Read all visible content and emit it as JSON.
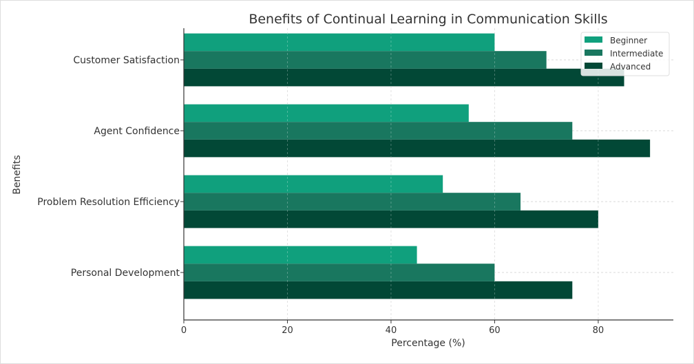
{
  "chart_data": {
    "type": "bar",
    "orientation": "horizontal",
    "title": "Benefits of Continual Learning in Communication Skills",
    "xlabel": "Percentage (%)",
    "ylabel": "Benefits",
    "categories": [
      "Customer Satisfaction",
      "Agent Confidence",
      "Problem Resolution Efficiency",
      "Personal Development"
    ],
    "series": [
      {
        "name": "Beginner",
        "color": "#10a07d",
        "values": [
          60,
          55,
          50,
          45
        ]
      },
      {
        "name": "Intermediate",
        "color": "#19775f",
        "values": [
          70,
          75,
          65,
          60
        ]
      },
      {
        "name": "Advanced",
        "color": "#024836",
        "values": [
          85,
          90,
          80,
          75
        ]
      }
    ],
    "xlim": [
      0,
      94.5
    ],
    "xticks": [
      0,
      20,
      40,
      60,
      80
    ],
    "grid": true,
    "legend": "top-right"
  }
}
